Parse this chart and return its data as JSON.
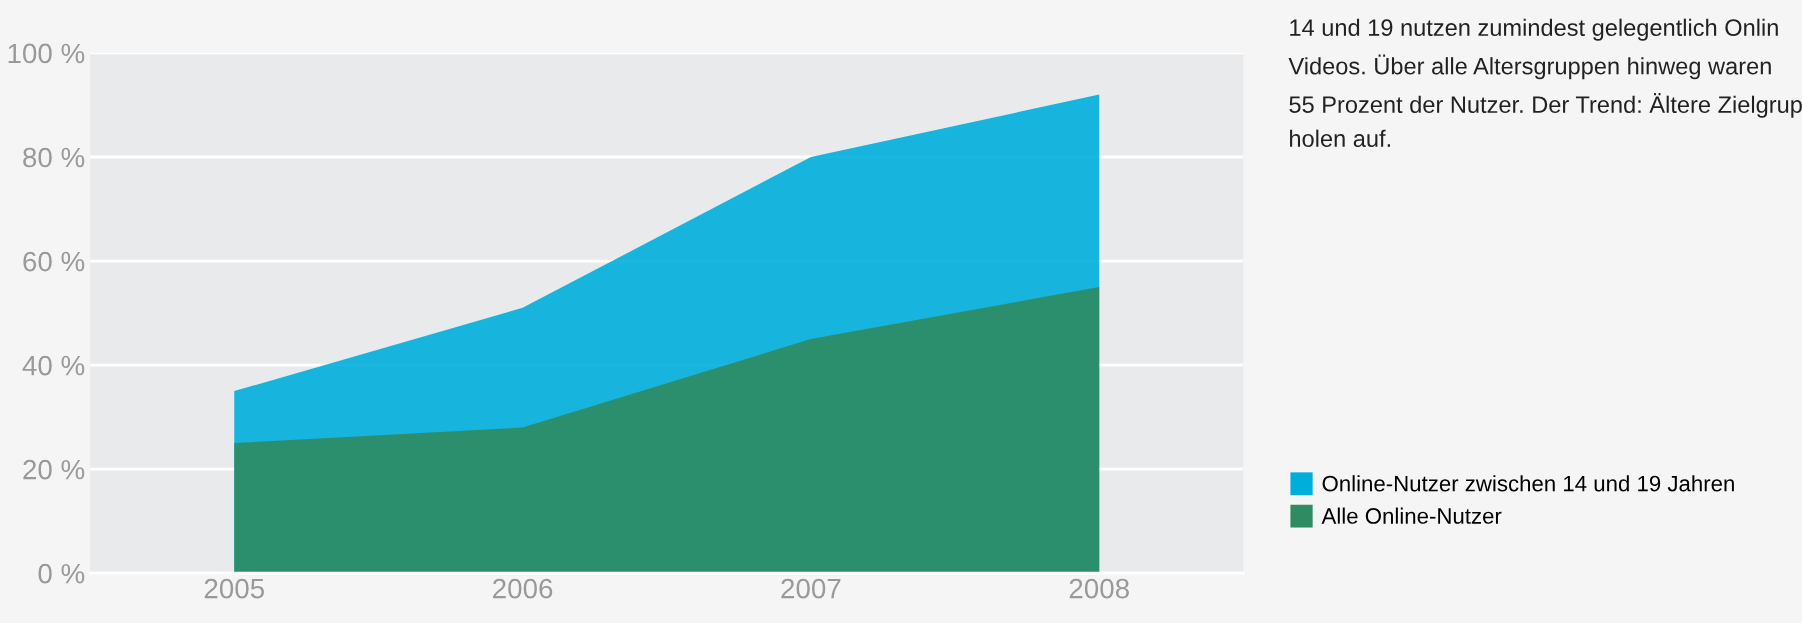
{
  "chart_data": {
    "type": "area",
    "categories": [
      "2005",
      "2006",
      "2007",
      "2008"
    ],
    "series": [
      {
        "name": "Online-Nutzer zwischen 14 und 19 Jahren",
        "color": "#00aedb",
        "values": [
          35,
          51,
          80,
          92
        ]
      },
      {
        "name": "Alle Online-Nutzer",
        "color": "#2e8b62",
        "values": [
          25,
          28,
          45,
          55
        ]
      }
    ],
    "ylim": [
      0,
      100
    ],
    "yticks": [
      {
        "value": 0,
        "label": "0 %"
      },
      {
        "value": 20,
        "label": "20 %"
      },
      {
        "value": 40,
        "label": "40 %"
      },
      {
        "value": 60,
        "label": "60 %"
      },
      {
        "value": 80,
        "label": "80 %"
      },
      {
        "value": 100,
        "label": "100 %"
      }
    ],
    "grid": "y",
    "legend": "bottom right",
    "annotations": [
      "14 und 19 nutzen zumindest gelegentlich Onlin\nVideos. Über alle Altersgruppen hinweg waren\n55 Prozent der Nutzer. Der Trend: Ältere Zielgrup\nholen auf."
    ]
  }
}
